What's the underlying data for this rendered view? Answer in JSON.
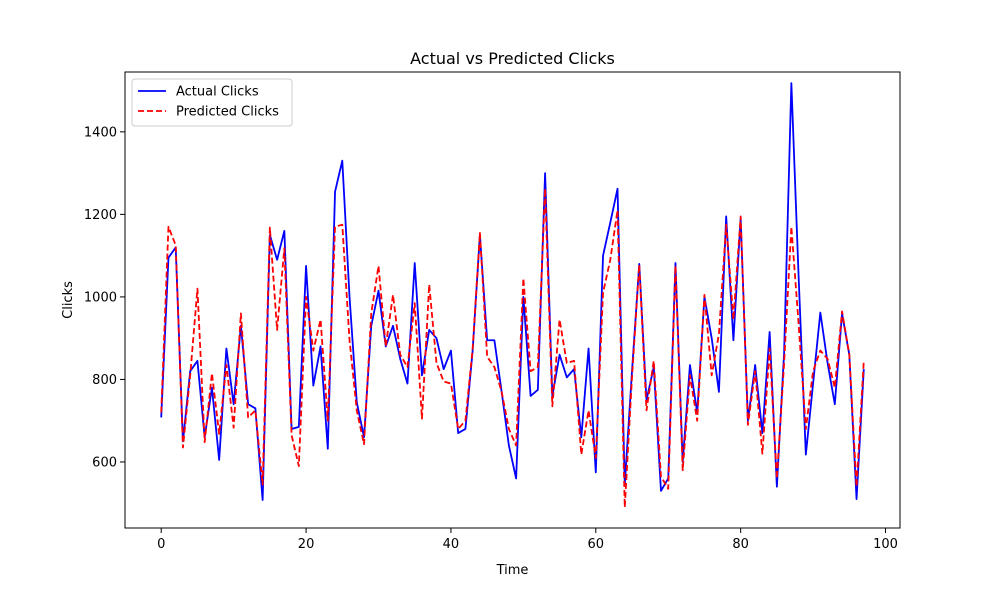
{
  "chart_data": {
    "type": "line",
    "title": "Actual vs Predicted Clicks",
    "xlabel": "Time",
    "ylabel": "Clicks",
    "xlim": [
      -5,
      102
    ],
    "ylim": [
      440,
      1545
    ],
    "xticks": [
      0,
      20,
      40,
      60,
      80,
      100
    ],
    "yticks": [
      600,
      800,
      1000,
      1200,
      1400
    ],
    "grid": false,
    "legend_position": "top-left",
    "x": [
      0,
      1,
      2,
      3,
      4,
      5,
      6,
      7,
      8,
      9,
      10,
      11,
      12,
      13,
      14,
      15,
      16,
      17,
      18,
      19,
      20,
      21,
      22,
      23,
      24,
      25,
      26,
      27,
      28,
      29,
      30,
      31,
      32,
      33,
      34,
      35,
      36,
      37,
      38,
      39,
      40,
      41,
      42,
      43,
      44,
      45,
      46,
      47,
      48,
      49,
      50,
      51,
      52,
      53,
      54,
      55,
      56,
      57,
      58,
      59,
      60,
      61,
      62,
      63,
      64,
      65,
      66,
      67,
      68,
      69,
      70,
      71,
      72,
      73,
      74,
      75,
      76,
      77,
      78,
      79,
      80,
      81,
      82,
      83,
      84,
      85,
      86,
      87,
      88,
      89,
      90,
      91,
      92,
      93,
      94,
      95,
      96,
      97
    ],
    "series": [
      {
        "name": "Actual Clicks",
        "color": "#0000ff",
        "style": "solid",
        "values": [
          708,
          1095,
          1120,
          650,
          820,
          845,
          660,
          780,
          605,
          875,
          740,
          930,
          740,
          730,
          508,
          1150,
          1090,
          1160,
          680,
          685,
          1075,
          785,
          880,
          632,
          1255,
          1330,
          1000,
          745,
          660,
          930,
          1015,
          880,
          930,
          850,
          790,
          1082,
          810,
          920,
          900,
          825,
          870,
          670,
          680,
          870,
          1150,
          895,
          895,
          770,
          640,
          560,
          1000,
          760,
          775,
          1300,
          760,
          860,
          805,
          825,
          660,
          875,
          575,
          1100,
          1180,
          1262,
          545,
          820,
          1080,
          750,
          830,
          530,
          560,
          1082,
          600,
          835,
          720,
          1000,
          900,
          770,
          1195,
          895,
          1190,
          700,
          835,
          670,
          915,
          540,
          865,
          1518,
          1050,
          618,
          790,
          962,
          840,
          740,
          960,
          860,
          510,
          825
        ]
      },
      {
        "name": "Predicted Clicks",
        "color": "#ff0000",
        "style": "dashed",
        "values": [
          720,
          1170,
          1125,
          635,
          810,
          1020,
          648,
          815,
          668,
          835,
          683,
          960,
          708,
          725,
          545,
          1168,
          920,
          1118,
          665,
          590,
          1000,
          870,
          945,
          700,
          1170,
          1175,
          895,
          725,
          643,
          960,
          1075,
          880,
          1005,
          860,
          830,
          985,
          705,
          1030,
          840,
          795,
          790,
          680,
          700,
          875,
          1155,
          855,
          830,
          770,
          680,
          640,
          1045,
          820,
          830,
          1262,
          735,
          945,
          840,
          845,
          618,
          725,
          610,
          1010,
          1090,
          1210,
          490,
          805,
          1078,
          725,
          845,
          565,
          535,
          1075,
          580,
          810,
          700,
          1005,
          810,
          910,
          1175,
          945,
          1195,
          690,
          820,
          620,
          875,
          560,
          840,
          1170,
          935,
          680,
          820,
          870,
          850,
          780,
          965,
          860,
          540,
          845
        ]
      }
    ]
  }
}
